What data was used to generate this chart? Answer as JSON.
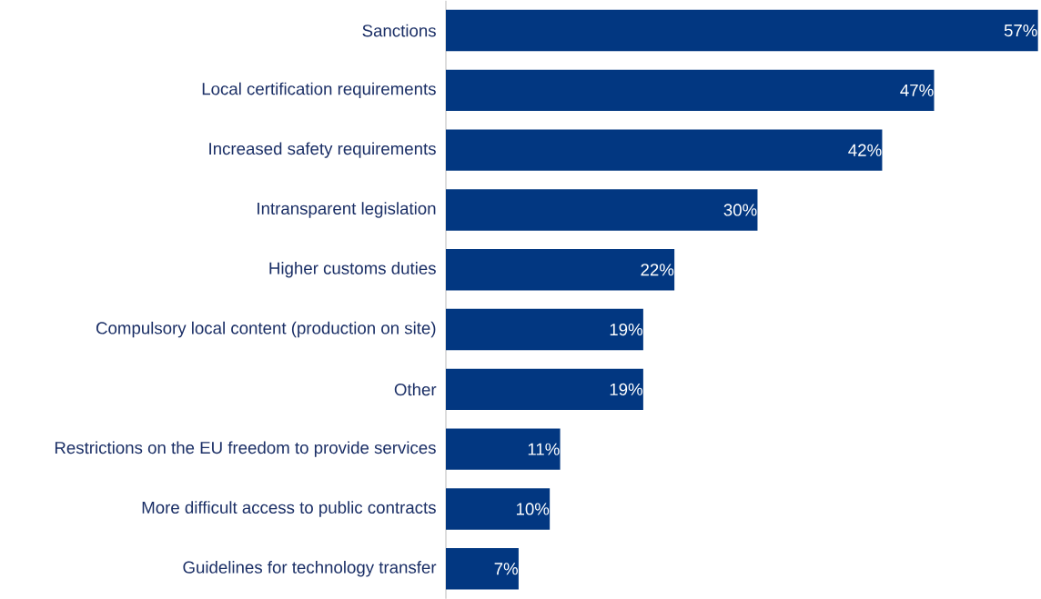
{
  "chart_data": {
    "type": "bar",
    "orientation": "horizontal",
    "categories": [
      "Sanctions",
      "Local certification requirements",
      "Increased safety requirements",
      "Intransparent legislation",
      "Higher customs duties",
      "Compulsory local content (production on site)",
      "Other",
      "Restrictions on the EU freedom to provide services",
      "More difficult access to public contracts",
      "Guidelines for technology transfer"
    ],
    "values": [
      57,
      47,
      42,
      30,
      22,
      19,
      19,
      11,
      10,
      7
    ],
    "value_labels": [
      "57%",
      "47%",
      "42%",
      "30%",
      "22%",
      "19%",
      "19%",
      "11%",
      "10%",
      "7%"
    ],
    "color": "#023781"
  }
}
